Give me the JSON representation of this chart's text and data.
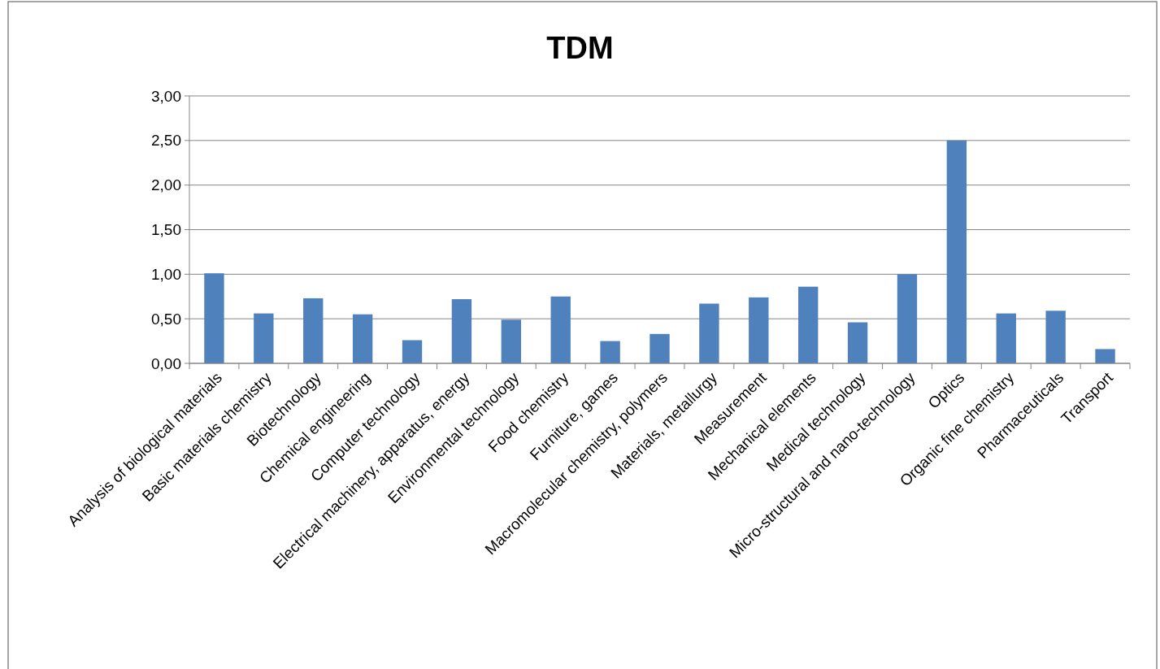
{
  "chart_data": {
    "type": "bar",
    "title": "TDM",
    "categories": [
      "Analysis of biological materials",
      "Basic materials chemistry",
      "Biotechnology",
      "Chemical engineering",
      "Computer technology",
      "Electrical machinery, apparatus, energy",
      "Environmental technology",
      "Food chemistry",
      "Furniture, games",
      "Macromolecular chemistry, polymers",
      "Materials, metallurgy",
      "Measurement",
      "Mechanical elements",
      "Medical technology",
      "Micro-structural and nano-technology",
      "Optics",
      "Organic fine chemistry",
      "Pharmaceuticals",
      "Transport"
    ],
    "values": [
      1.01,
      0.56,
      0.73,
      0.55,
      0.26,
      0.72,
      0.49,
      0.75,
      0.25,
      0.33,
      0.67,
      0.74,
      0.86,
      0.46,
      1.0,
      2.5,
      0.56,
      0.59,
      0.16
    ],
    "color": "#4f81bd",
    "ylim": [
      0,
      3
    ],
    "yticks": [
      {
        "value": 0,
        "label": "0,00"
      },
      {
        "value": 0.5,
        "label": "0,50"
      },
      {
        "value": 1,
        "label": "1,00"
      },
      {
        "value": 1.5,
        "label": "1,50"
      },
      {
        "value": 2,
        "label": "2,00"
      },
      {
        "value": 2.5,
        "label": "2,50"
      },
      {
        "value": 3,
        "label": "3,00"
      }
    ],
    "grid": "y"
  }
}
